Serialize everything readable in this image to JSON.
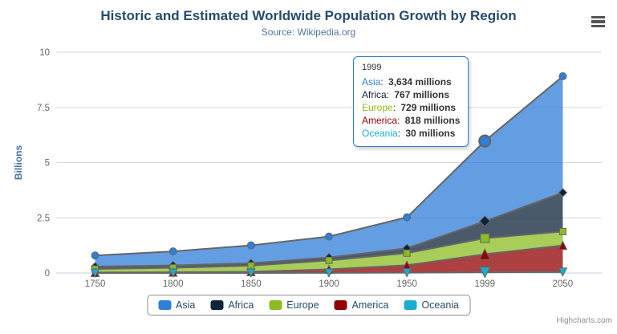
{
  "chart_data": {
    "type": "area",
    "stacking": "normal",
    "title": "Historic and Estimated Worldwide Population Growth by Region",
    "subtitle": "Source: Wikipedia.org",
    "xlabel": "",
    "ylabel": "Billions",
    "categories": [
      "1750",
      "1800",
      "1850",
      "1900",
      "1950",
      "1999",
      "2050"
    ],
    "series": [
      {
        "name": "Asia",
        "color": "#2f7ed8",
        "marker": "circle",
        "values_millions": [
          502,
          635,
          809,
          947,
          1402,
          3634,
          5268
        ]
      },
      {
        "name": "Africa",
        "color": "#0d233a",
        "marker": "diamond",
        "values_millions": [
          106,
          107,
          111,
          133,
          221,
          767,
          1766
        ]
      },
      {
        "name": "Europe",
        "color": "#8bbc21",
        "marker": "square",
        "values_millions": [
          163,
          203,
          276,
          408,
          547,
          729,
          628
        ]
      },
      {
        "name": "America",
        "color": "#910000",
        "marker": "triangle",
        "values_millions": [
          18,
          31,
          54,
          156,
          339,
          818,
          1201
        ]
      },
      {
        "name": "Oceania",
        "color": "#1aadce",
        "marker": "triangle-down",
        "values_millions": [
          2,
          2,
          2,
          6,
          13,
          30,
          46
        ]
      }
    ],
    "values_unit": "millions",
    "ylim": [
      0,
      10
    ],
    "yticks": [
      0,
      2.5,
      5,
      7.5,
      10
    ],
    "ytick_labels": [
      "0",
      "2.5",
      "5",
      "7.5",
      "10"
    ],
    "grid": "horizontal-only",
    "grid_color": "#d8d8d8",
    "axis_line_color": "#c0d0e0",
    "area_line_color": "#666666",
    "fill_opacity": 0.75,
    "hover_category_index": 5,
    "legend_position": "bottom"
  },
  "tooltip": {
    "header": "1999",
    "border_color": "#2f7ed8",
    "rows": [
      {
        "name": "Asia",
        "value": "3,634 millions"
      },
      {
        "name": "Africa",
        "value": "767 millions"
      },
      {
        "name": "Europe",
        "value": "729 millions"
      },
      {
        "name": "America",
        "value": "818 millions"
      },
      {
        "name": "Oceania",
        "value": "30 millions"
      }
    ]
  },
  "credits": {
    "label": "Highcharts.com"
  },
  "icons": {
    "context_menu": "hamburger-menu-icon"
  }
}
